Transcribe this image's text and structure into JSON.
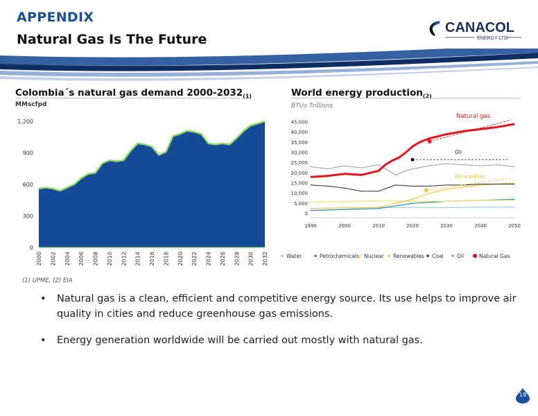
{
  "header": {
    "title": "APPENDIX",
    "subtitle": "Natural Gas Is The Future"
  },
  "logo": {
    "name": "CANACOL",
    "tagline": "ENERGY LTD."
  },
  "colors": {
    "title_blue": "#1a4f9c",
    "area_fill": "#154a97",
    "area_edge": "#8ed56b",
    "natural_gas": "#e3141b",
    "renewables": "#f5c242",
    "oil": "#9a9a9a",
    "coal": "#2a2a2a",
    "nuclear": "#f2e46a",
    "petrochemicals": "#1a8fa8",
    "water": "#8fc6de"
  },
  "left_chart": {
    "title": "Colombia´s natural gas demand 2000-2032",
    "title_ref": "(1)",
    "unit": "MMscfpd"
  },
  "right_chart": {
    "title": "World energy production",
    "title_ref": "(2)",
    "unit": "BTUs Trillions",
    "annotation_natural_gas": "Natural gas",
    "annotation_oil": "Oil",
    "annotation_renewables": "Renewables"
  },
  "chart_data": [
    {
      "type": "area",
      "title": "Colombia´s natural gas demand 2000-2032(1)",
      "ylabel": "MMscfpd",
      "ylim": [
        0,
        1200
      ],
      "yticks": [
        0,
        300,
        600,
        900,
        1200
      ],
      "ytick_labels": [
        "0",
        "300",
        "600",
        "900",
        "1,200"
      ],
      "xtick_labels": [
        "2000",
        "2002",
        "2004",
        "2006",
        "2008",
        "2010",
        "2012",
        "2014",
        "2016",
        "2018",
        "2020",
        "2022",
        "2024",
        "2026",
        "2028",
        "2030",
        "2032"
      ],
      "x": [
        2000,
        2001,
        2002,
        2003,
        2004,
        2005,
        2006,
        2007,
        2008,
        2009,
        2010,
        2011,
        2012,
        2013,
        2014,
        2015,
        2016,
        2017,
        2018,
        2019,
        2020,
        2021,
        2022,
        2023,
        2024,
        2025,
        2026,
        2027,
        2028,
        2029,
        2030,
        2031,
        2032
      ],
      "values": [
        560,
        570,
        560,
        540,
        570,
        600,
        660,
        700,
        710,
        800,
        830,
        820,
        830,
        920,
        990,
        980,
        960,
        880,
        910,
        1060,
        1080,
        1110,
        1100,
        1080,
        990,
        980,
        990,
        980,
        1040,
        1110,
        1160,
        1180,
        1200
      ]
    },
    {
      "type": "line",
      "title": "World energy production(2)",
      "ylabel": "BTUs Trillions",
      "ylim": [
        0,
        45000
      ],
      "xlim": [
        1990,
        2050
      ],
      "yticks": [
        0,
        5000,
        10000,
        15000,
        20000,
        25000,
        30000,
        35000,
        40000,
        45000
      ],
      "ytick_labels": [
        "0",
        "5,000",
        "10,000",
        "15,000",
        "20,000",
        "25,000",
        "30,000",
        "35,000",
        "40,000",
        "45,000"
      ],
      "xticks": [
        1990,
        2000,
        2010,
        2020,
        2030,
        2040,
        2050
      ],
      "xtick_labels": [
        "1990",
        "2000",
        "2010",
        "2020",
        "2030",
        "2040",
        "2050"
      ],
      "legend": [
        "Water",
        "Petrochemicals",
        "Nuclear",
        "Renewables",
        "Coal",
        "Oil",
        "Natural Gas"
      ],
      "legend_position": "bottom",
      "series": [
        {
          "name": "Natural Gas",
          "x": [
            1990,
            1995,
            2000,
            2005,
            2010,
            2012,
            2014,
            2016,
            2018,
            2020,
            2022,
            2025,
            2030,
            2035,
            2040,
            2045,
            2050
          ],
          "values": [
            18000,
            18500,
            19500,
            19000,
            21000,
            24000,
            26000,
            27500,
            30000,
            33000,
            35000,
            37000,
            39000,
            40500,
            41500,
            42500,
            44000
          ]
        },
        {
          "name": "Oil",
          "x": [
            1990,
            1995,
            2000,
            2005,
            2010,
            2015,
            2018,
            2020,
            2025,
            2030,
            2035,
            2040,
            2045,
            2050
          ],
          "values": [
            23000,
            22000,
            23500,
            22500,
            24000,
            19000,
            21000,
            22000,
            23500,
            24500,
            24000,
            23500,
            24000,
            23000
          ]
        },
        {
          "name": "Coal",
          "x": [
            1990,
            1995,
            2000,
            2005,
            2010,
            2015,
            2020,
            2025,
            2030,
            2035,
            2040,
            2045,
            2050
          ],
          "values": [
            14000,
            13500,
            12500,
            11000,
            11000,
            14000,
            13500,
            13500,
            14000,
            14000,
            14500,
            14500,
            14500
          ]
        },
        {
          "name": "Renewables",
          "x": [
            1990,
            2000,
            2010,
            2015,
            2020,
            2025,
            2030,
            2035,
            2040,
            2045,
            2050
          ],
          "values": [
            2500,
            2800,
            3000,
            5000,
            7000,
            10000,
            12000,
            13000,
            14000,
            14500,
            15000
          ]
        },
        {
          "name": "Nuclear",
          "x": [
            1990,
            2000,
            2010,
            2020,
            2030,
            2040,
            2050
          ],
          "values": [
            5500,
            6000,
            6200,
            6000,
            6000,
            6500,
            6500
          ]
        },
        {
          "name": "Petrochemicals",
          "x": [
            1990,
            2000,
            2010,
            2020,
            2030,
            2040,
            2050
          ],
          "values": [
            1500,
            2000,
            2500,
            5000,
            6000,
            6500,
            7000
          ]
        },
        {
          "name": "Water",
          "x": [
            1990,
            2000,
            2010,
            2020,
            2030,
            2040,
            2050
          ],
          "values": [
            2500,
            2800,
            3000,
            3000,
            3000,
            3100,
            3200
          ]
        }
      ]
    }
  ],
  "footnote": "(1) UPME, (2) EIA",
  "bullets": [
    "Natural gas is a clean, efficient and competitive energy source. Its use helps to improve air quality in cities and reduce greenhouse gas emissions.",
    "Energy generation worldwide will be carried out mostly with natural gas."
  ],
  "bullet_symbol": "•",
  "page_number": "18"
}
